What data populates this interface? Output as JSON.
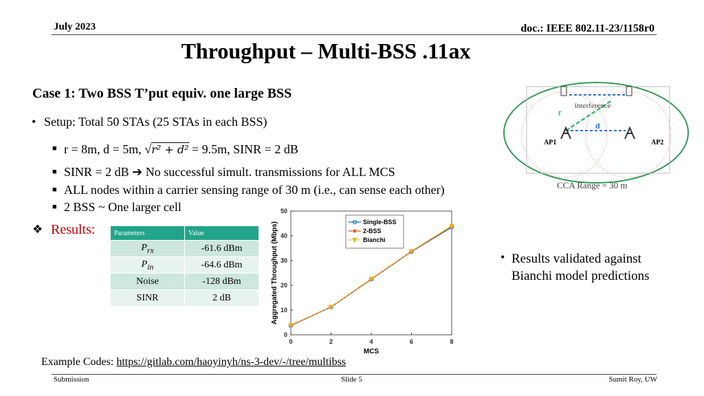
{
  "header": {
    "date": "July 2023",
    "doc": "doc.: IEEE 802.11-23/1158r0"
  },
  "title": "Throughput – Multi-BSS .11ax",
  "case_heading": "Case 1: Two BSS T’put equiv.  one large BSS",
  "setup": "Setup: Total 50 STAs (25 STAs in each BSS)",
  "geometry": {
    "prefix": "r = 8m, d = 5m,",
    "radical": "√",
    "radicand": "r² + d²",
    "suffix": "= 9.5m, SINR = 2 dB"
  },
  "sub_bullets": [
    "SINR = 2 dB ➔ No successful simult. transmissions for ALL MCS",
    "ALL nodes within a carrier sensing range of 30 m (i.e., can sense each other)",
    "2 BSS  ~  One larger cell"
  ],
  "results_label": "Results:",
  "table": {
    "header": [
      "Parameters",
      "Value"
    ],
    "rows": [
      {
        "param": "P",
        "param_sub": "rx",
        "value": "-61.6 dBm"
      },
      {
        "param": "P",
        "param_sub": "in",
        "value": "-64.6 dBm"
      },
      {
        "param": "Noise",
        "value": "-128 dBm"
      },
      {
        "param": "SINR",
        "value": "2 dB"
      }
    ]
  },
  "diagram": {
    "interference": "interference",
    "r": "r",
    "d": "d",
    "ap1": "AP1",
    "ap2": "AP2",
    "cca": "CCA Range = 30 m"
  },
  "chart_data": {
    "type": "line",
    "x_label": "MCS",
    "y_label": "Aggregated Throughput (Mbps)",
    "x": [
      0,
      2,
      4,
      6,
      8
    ],
    "series": [
      {
        "name": "Single-BSS",
        "color": "#0072bd",
        "marker": "o",
        "dashed": false,
        "values": [
          3.7,
          11.2,
          22.4,
          33.6,
          43.5
        ]
      },
      {
        "name": "2-BSS",
        "color": "#d95319",
        "marker": "*",
        "dashed": false,
        "values": [
          3.8,
          11.3,
          22.5,
          33.7,
          43.8
        ]
      },
      {
        "name": "Bianchi",
        "color": "#edb120",
        "marker": "v",
        "dashed": true,
        "values": [
          3.9,
          11.3,
          22.6,
          33.8,
          44.0
        ]
      }
    ],
    "xlim": [
      0,
      8
    ],
    "xticks": [
      0,
      2,
      4,
      6,
      8
    ],
    "ylim": [
      0,
      50
    ],
    "yticks": [
      0,
      10,
      20,
      30,
      40,
      50
    ],
    "grid": false,
    "legend": "upper center"
  },
  "note": "Results validated against Bianchi model predictions",
  "codes": {
    "label": "Example Codes:",
    "url": "https://gitlab.com/haoyinyh/ns-3-dev/-/tree/multibss"
  },
  "footer": {
    "left": "Submission",
    "center": "Slide 5",
    "right": "Sumit Roy, UW"
  }
}
